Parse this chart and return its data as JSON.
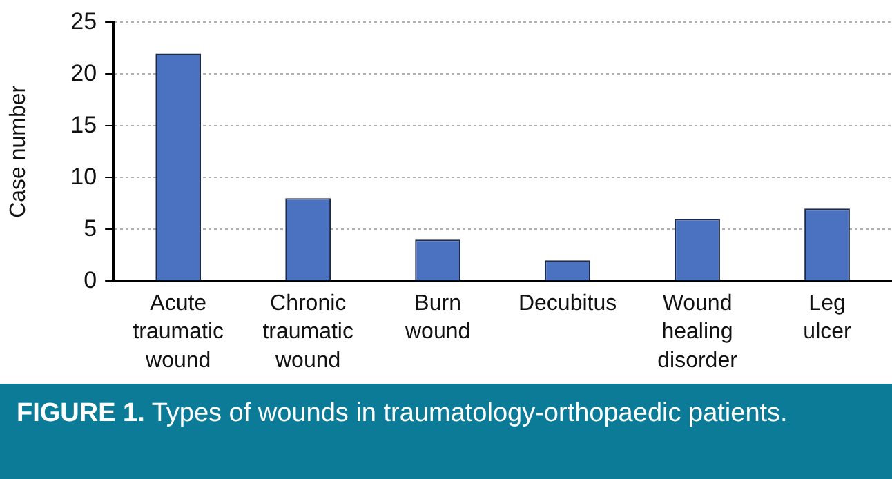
{
  "chart_data": {
    "type": "bar",
    "ylabel": "Case number",
    "categories": [
      "Acute traumatic wound",
      "Chronic traumatic wound",
      "Burn wound",
      "Decubitus",
      "Wound healing disorder",
      "Leg ulcer"
    ],
    "values": [
      22,
      8,
      4,
      2,
      6,
      7
    ],
    "color": "#4a72c0",
    "ylim": [
      0,
      25
    ],
    "yticks": [
      0,
      5,
      10,
      15,
      20,
      25
    ],
    "grid": "y",
    "annotations": [
      "FIGURE 1. Types of wounds in traumatology-orthopaedic patients."
    ]
  }
}
